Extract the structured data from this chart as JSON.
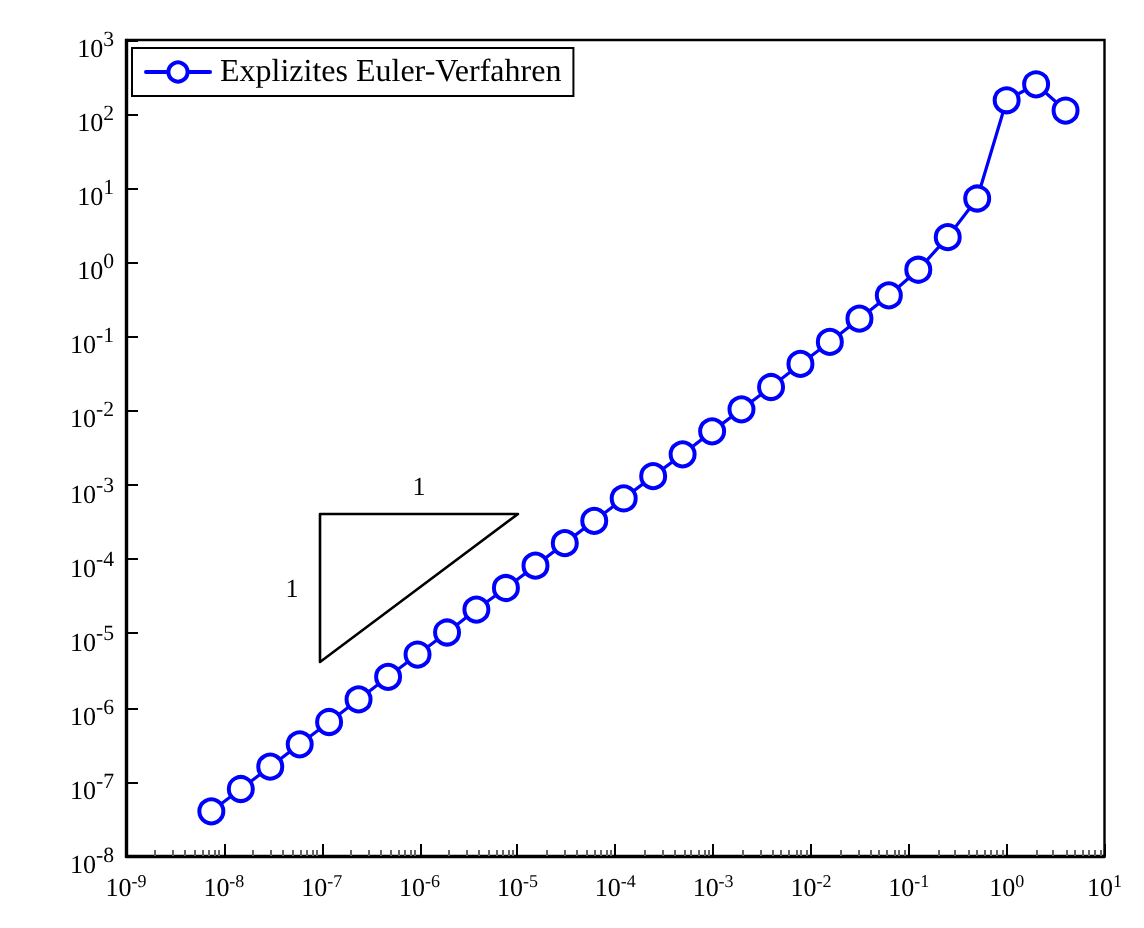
{
  "chart_data": {
    "type": "line",
    "log": "xy",
    "grid": false,
    "legend": "top left",
    "marker": "circle",
    "line_style": "solid",
    "xlim": [
      1e-09,
      10
    ],
    "ylim": [
      1e-08,
      1000
    ],
    "xticks": [
      {
        "value": 1e-09,
        "label": "10$^{-9}$"
      },
      {
        "value": 1e-08,
        "label": "10$^{-8}$"
      },
      {
        "value": 1e-07,
        "label": "10$^{-7}$"
      },
      {
        "value": 1e-06,
        "label": "10$^{-6}$"
      },
      {
        "value": 1e-05,
        "label": "10$^{-5}$"
      },
      {
        "value": 0.0001,
        "label": "10$^{-4}$"
      },
      {
        "value": 0.001,
        "label": "10$^{-3}$"
      },
      {
        "value": 0.01,
        "label": "10$^{-2}$"
      },
      {
        "value": 0.1,
        "label": "10$^{-1}$"
      },
      {
        "value": 1,
        "label": "10$^{0}$"
      },
      {
        "value": 10,
        "label": "10$^{1}$"
      }
    ],
    "yticks": [
      {
        "value": 1e-08,
        "label": "10$^{-8}$"
      },
      {
        "value": 1e-07,
        "label": "10$^{-7}$"
      },
      {
        "value": 1e-06,
        "label": "10$^{-6}$"
      },
      {
        "value": 1e-05,
        "label": "10$^{-5}$"
      },
      {
        "value": 0.0001,
        "label": "10$^{-4}$"
      },
      {
        "value": 0.001,
        "label": "10$^{-3}$"
      },
      {
        "value": 0.01,
        "label": "10$^{-2}$"
      },
      {
        "value": 0.1,
        "label": "10$^{-1}$"
      },
      {
        "value": 1,
        "label": "10$^{0}$"
      },
      {
        "value": 10,
        "label": "10$^{1}$"
      },
      {
        "value": 100,
        "label": "10$^{2}$"
      },
      {
        "value": 1000,
        "label": "10$^{3}$"
      }
    ],
    "series": [
      {
        "name": "Explizites Euler-Verfahren",
        "color": "#0000ff",
        "x": [
          7.45e-09,
          1.49e-08,
          2.98e-08,
          5.96e-08,
          1.19e-07,
          2.38e-07,
          4.77e-07,
          9.54e-07,
          1.91e-06,
          3.81e-06,
          7.63e-06,
          1.53e-05,
          3.05e-05,
          6.1e-05,
          0.000122,
          0.000244,
          0.000488,
          0.000977,
          0.00195,
          0.00391,
          0.00781,
          0.0156,
          0.0313,
          0.0625,
          0.125,
          0.25,
          0.5,
          1,
          2,
          4
        ],
        "values": [
          4e-08,
          8e-08,
          1.6e-07,
          3.2e-07,
          6.4e-07,
          1.29e-06,
          2.6e-06,
          5.2e-06,
          1.03e-05,
          2.1e-05,
          4.1e-05,
          8.2e-05,
          0.000165,
          0.00033,
          0.00066,
          0.00132,
          0.0026,
          0.0053,
          0.0105,
          0.021,
          0.043,
          0.085,
          0.175,
          0.36,
          0.8,
          2.2,
          7.3,
          154,
          253,
          112
        ]
      }
    ],
    "annotations": [
      "1",
      "1"
    ]
  }
}
